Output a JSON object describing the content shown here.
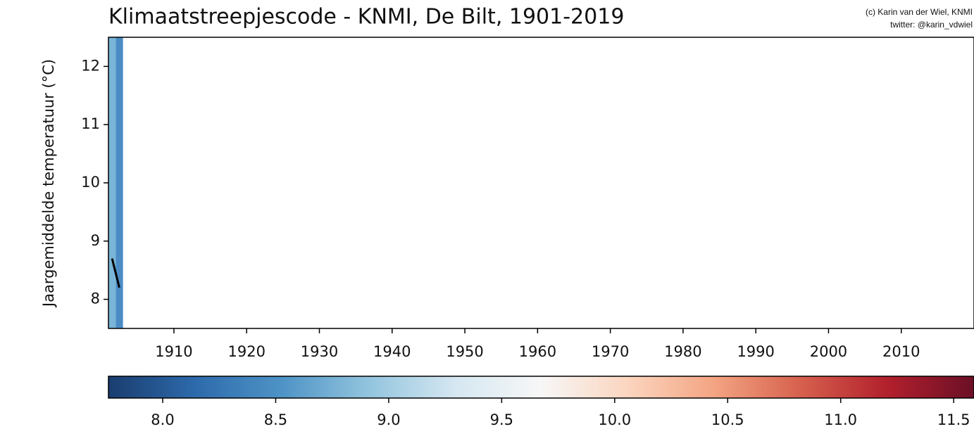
{
  "chart_data": {
    "type": "stripes",
    "title": "Klimaatstreepjescode - KNMI, De Bilt, 1901-2019",
    "credit": [
      "(c) Karin van der Wiel, KNMI",
      "twitter: @karin_vdwiel"
    ],
    "ylabel": "Jaargemiddelde temperatuur (°C)",
    "x": [
      1901,
      1902
    ],
    "values": [
      8.7,
      8.2
    ],
    "stripe_colors": [
      "#79b5d8",
      "#4b8cc5"
    ],
    "line_color": "#000000",
    "xlim": [
      1901,
      2020
    ],
    "xticks": [
      1910,
      1920,
      1930,
      1940,
      1950,
      1960,
      1970,
      1980,
      1990,
      2000,
      2010
    ],
    "ylim": [
      7.5,
      12.5
    ],
    "yticks": [
      8,
      9,
      10,
      11,
      12
    ],
    "colorbar": {
      "lim": [
        7.76,
        11.59
      ],
      "ticks": [
        {
          "value": 8,
          "label": "8.0"
        },
        {
          "value": 8.5,
          "label": "8.5"
        },
        {
          "value": 9,
          "label": "9.0"
        },
        {
          "value": 9.5,
          "label": "9.5"
        },
        {
          "value": 10,
          "label": "10.0"
        },
        {
          "value": 10.5,
          "label": "10.5"
        },
        {
          "value": 11,
          "label": "11.0"
        },
        {
          "value": 11.5,
          "label": "11.5"
        }
      ],
      "colormap": [
        "#1a3d6e",
        "#2d6aab",
        "#4e93c6",
        "#92c4de",
        "#d5e7f1",
        "#f7f7f7",
        "#fbd5bf",
        "#f3a482",
        "#d6604d",
        "#b2202d",
        "#6b0f26"
      ]
    }
  }
}
